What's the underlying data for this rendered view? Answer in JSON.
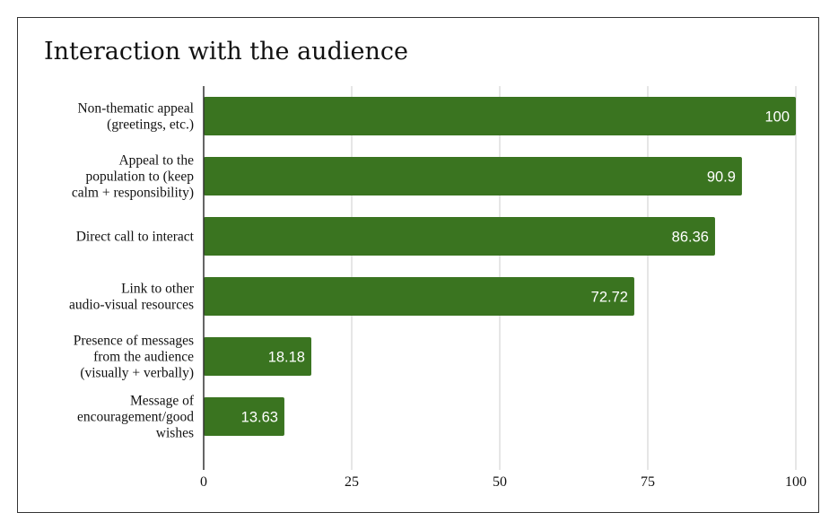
{
  "chart_data": {
    "type": "bar",
    "orientation": "horizontal",
    "title": "Interaction with the audience",
    "xlabel": "",
    "ylabel": "",
    "xlim": [
      0,
      100
    ],
    "ticks": [
      0,
      25,
      50,
      75,
      100
    ],
    "grid": true,
    "legend": "none",
    "bar_color": "#3a7420",
    "grid_color": "#cccccc",
    "categories": [
      "Non-thematic appeal\n(greetings, etc.)",
      "Appeal to the\npopulation to (keep\ncalm + responsibility)",
      "Direct call to interact",
      "Link to other\naudio-visual resources",
      "Presence of messages\nfrom the audience\n(visually + verbally)",
      "Message of\nencouragement/good\nwishes"
    ],
    "values": [
      100,
      90.9,
      86.36,
      72.72,
      18.18,
      13.63
    ],
    "data_labels": [
      "100",
      "90.9",
      "86.36",
      "72.72",
      "18.18",
      "13.63"
    ]
  }
}
